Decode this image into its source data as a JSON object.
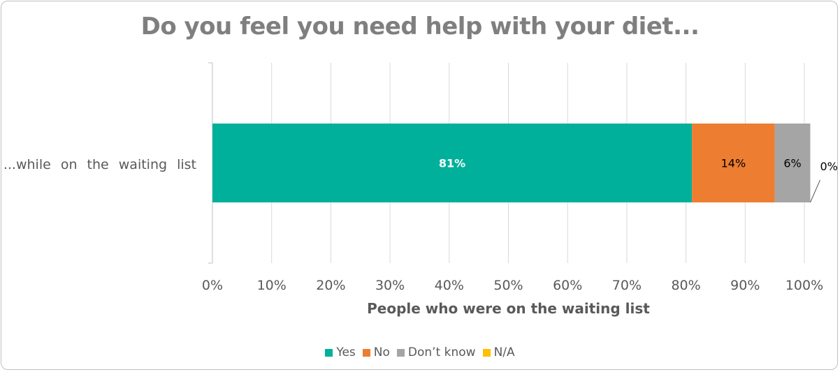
{
  "chart_data": {
    "type": "bar",
    "orientation": "horizontal",
    "stacked": true,
    "title": "Do you feel you need help with your diet...",
    "xlabel": "People who were on the waiting list",
    "ylabel": "",
    "categories": [
      "...while on the waiting list"
    ],
    "series": [
      {
        "name": "Yes",
        "values": [
          81
        ],
        "label": "81%",
        "color": "#00b09b",
        "label_color": "#ffffff"
      },
      {
        "name": "No",
        "values": [
          14
        ],
        "label": "14%",
        "color": "#ed7d31",
        "label_color": "#000000"
      },
      {
        "name": "Don’t know",
        "values": [
          6
        ],
        "label": "6%",
        "color": "#a5a5a5",
        "label_color": "#000000"
      },
      {
        "name": "N/A",
        "values": [
          0
        ],
        "label": "0%",
        "color": "#ffc000",
        "label_color": "#000000"
      }
    ],
    "xlim": [
      0,
      100
    ],
    "xticks": [
      "0%",
      "10%",
      "20%",
      "30%",
      "40%",
      "50%",
      "60%",
      "70%",
      "80%",
      "90%",
      "100%"
    ],
    "grid": true,
    "legend_position": "bottom"
  }
}
